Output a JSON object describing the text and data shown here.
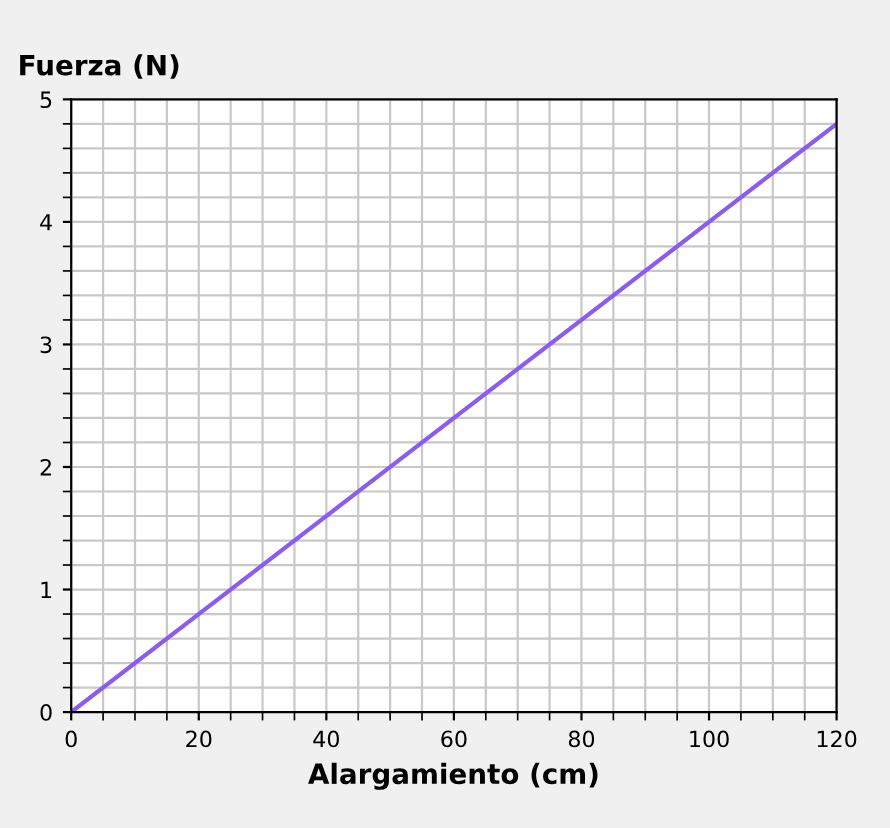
{
  "chart_data": {
    "type": "line",
    "xlabel": "Alargamiento (cm)",
    "ylabel": "Fuerza (N)",
    "x": [
      0,
      120
    ],
    "series": [
      {
        "color": "#8a5cf0",
        "values": [
          0,
          4.8
        ]
      }
    ],
    "xlim": [
      0,
      120
    ],
    "xticks": [
      0,
      20,
      40,
      60,
      80,
      100,
      120
    ],
    "ylim": [
      0,
      5
    ],
    "yticks": [
      0,
      1,
      2,
      3,
      4,
      5
    ],
    "grid": true,
    "legend": false
  }
}
